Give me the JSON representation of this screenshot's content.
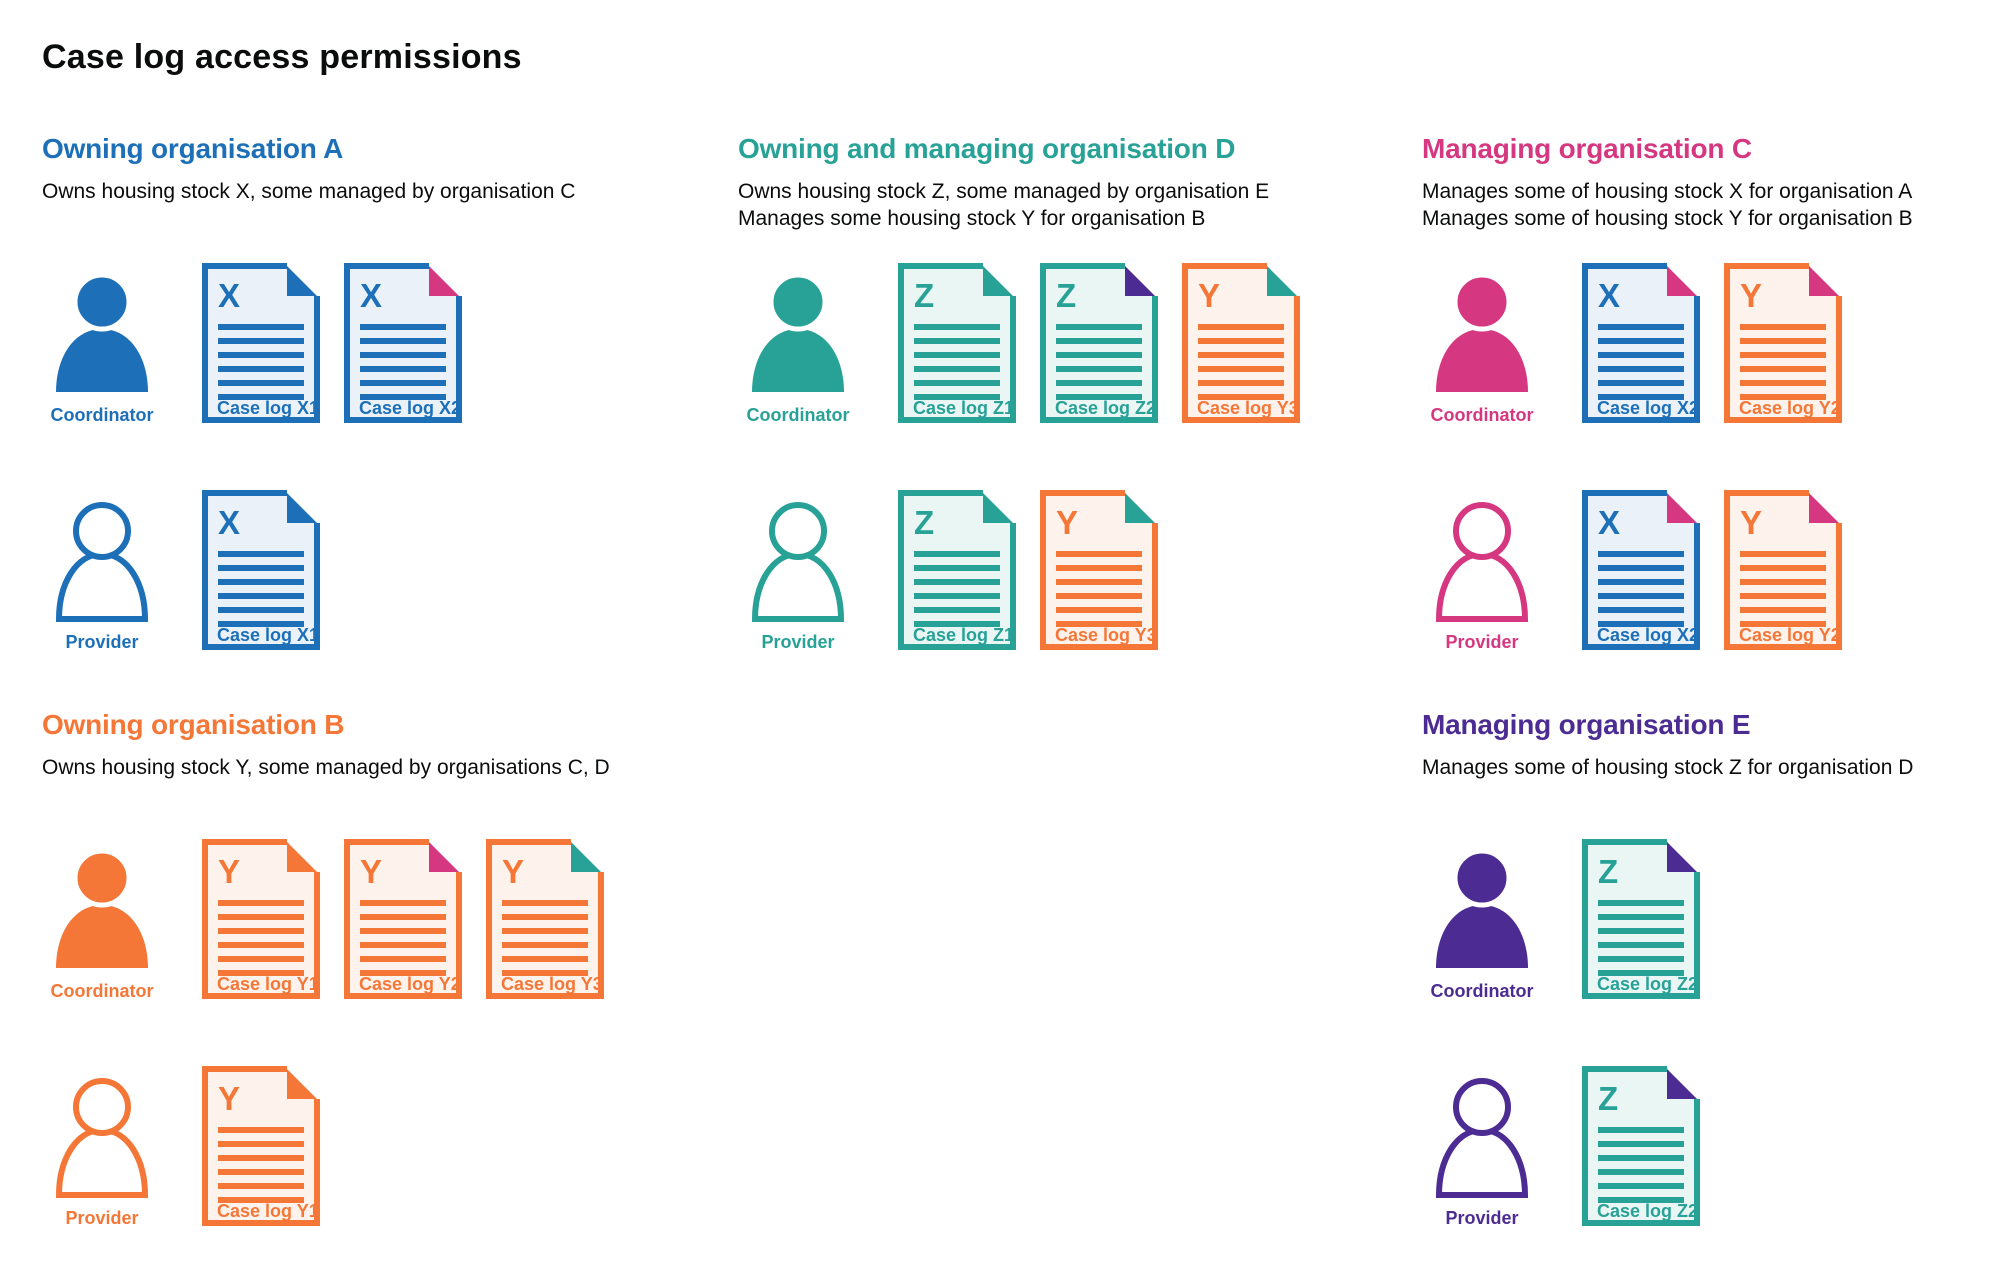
{
  "page": {
    "title": "Case log access permissions"
  },
  "colors": {
    "blue": "#1d70b8",
    "teal": "#28a197",
    "orange": "#f47738",
    "pink": "#d53880",
    "purple": "#4c2c92",
    "text": "#0b0c0c",
    "tints": {
      "blue": "#eaf1f9",
      "teal": "#e9f6f4",
      "orange": "#fef3ec"
    }
  },
  "roles": {
    "coordinator_label": "Coordinator",
    "provider_label": "Provider"
  },
  "sections": [
    {
      "id": "org-a",
      "heading": "Owning organisation A",
      "color": "blue",
      "description": [
        "Owns housing stock X, some managed by organisation C"
      ],
      "rows": [
        {
          "role": "coordinator",
          "person": "filled",
          "docs": [
            {
              "letter": "X",
              "body": "blue",
              "corner": "blue",
              "label": "Case log X1"
            },
            {
              "letter": "X",
              "body": "blue",
              "corner": "pink",
              "label": "Case log X2"
            }
          ]
        },
        {
          "role": "provider",
          "person": "outline",
          "docs": [
            {
              "letter": "X",
              "body": "blue",
              "corner": "blue",
              "label": "Case log X1"
            }
          ]
        }
      ]
    },
    {
      "id": "org-d",
      "heading": "Owning and managing organisation D",
      "color": "teal",
      "description": [
        "Owns housing stock Z, some managed by organisation E",
        "Manages some housing stock Y for organisation B"
      ],
      "rows": [
        {
          "role": "coordinator",
          "person": "filled",
          "docs": [
            {
              "letter": "Z",
              "body": "teal",
              "corner": "teal",
              "label": "Case log Z1"
            },
            {
              "letter": "Z",
              "body": "teal",
              "corner": "purple",
              "label": "Case log Z2"
            },
            {
              "letter": "Y",
              "body": "orange",
              "corner": "teal",
              "label": "Case log Y3"
            }
          ]
        },
        {
          "role": "provider",
          "person": "outline",
          "docs": [
            {
              "letter": "Z",
              "body": "teal",
              "corner": "teal",
              "label": "Case log Z1"
            },
            {
              "letter": "Y",
              "body": "orange",
              "corner": "teal",
              "label": "Case log Y3"
            }
          ]
        }
      ]
    },
    {
      "id": "org-c",
      "heading": "Managing organisation C",
      "color": "pink",
      "description": [
        "Manages some of housing stock X for organisation A",
        "Manages some of housing stock Y for organisation B"
      ],
      "rows": [
        {
          "role": "coordinator",
          "person": "filled",
          "docs": [
            {
              "letter": "X",
              "body": "blue",
              "corner": "pink",
              "label": "Case log X2"
            },
            {
              "letter": "Y",
              "body": "orange",
              "corner": "pink",
              "label": "Case log Y2"
            }
          ]
        },
        {
          "role": "provider",
          "person": "outline",
          "docs": [
            {
              "letter": "X",
              "body": "blue",
              "corner": "pink",
              "label": "Case log X2"
            },
            {
              "letter": "Y",
              "body": "orange",
              "corner": "pink",
              "label": "Case log Y2"
            }
          ]
        }
      ]
    },
    {
      "id": "org-b",
      "heading": "Owning organisation B",
      "color": "orange",
      "description": [
        "Owns housing stock Y, some managed by organisations C, D"
      ],
      "rows": [
        {
          "role": "coordinator",
          "person": "filled",
          "docs": [
            {
              "letter": "Y",
              "body": "orange",
              "corner": "orange",
              "label": "Case log Y1"
            },
            {
              "letter": "Y",
              "body": "orange",
              "corner": "pink",
              "label": "Case log Y2"
            },
            {
              "letter": "Y",
              "body": "orange",
              "corner": "teal",
              "label": "Case log Y3"
            }
          ]
        },
        {
          "role": "provider",
          "person": "outline",
          "docs": [
            {
              "letter": "Y",
              "body": "orange",
              "corner": "orange",
              "label": "Case log Y1"
            }
          ]
        }
      ]
    },
    {
      "id": "org-e",
      "heading": "Managing organisation E",
      "color": "purple",
      "description": [
        "Manages some of housing stock Z for organisation D"
      ],
      "rows": [
        {
          "role": "coordinator",
          "person": "filled",
          "docs": [
            {
              "letter": "Z",
              "body": "teal",
              "corner": "purple",
              "label": "Case log Z2"
            }
          ]
        },
        {
          "role": "provider",
          "person": "outline",
          "docs": [
            {
              "letter": "Z",
              "body": "teal",
              "corner": "purple",
              "label": "Case log Z2"
            }
          ]
        }
      ]
    }
  ]
}
